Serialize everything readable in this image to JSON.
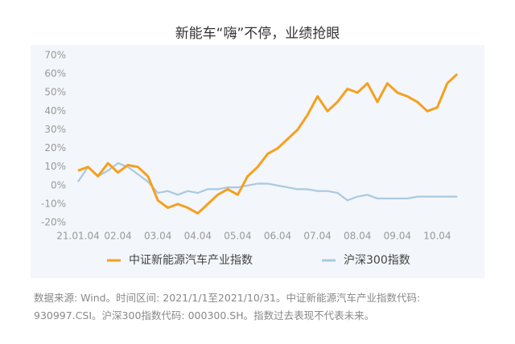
{
  "chart_data": {
    "type": "line",
    "title": "新能车“嗨”不停，业绩抢眼",
    "categories": [
      "21.01.04",
      null,
      null,
      null,
      "02.04",
      null,
      null,
      null,
      "03.04",
      null,
      null,
      null,
      "04.04",
      null,
      null,
      null,
      "05.04",
      null,
      null,
      null,
      "06.04",
      null,
      null,
      null,
      "07.04",
      null,
      null,
      null,
      "08.04",
      null,
      null,
      null,
      "09.04",
      null,
      null,
      null,
      "10.04",
      null,
      null
    ],
    "series": [
      {
        "name": "中证新能源汽车产业指数",
        "color": "#f5a01f",
        "values": [
          8,
          10,
          5,
          12,
          7,
          11,
          10,
          5,
          -8,
          -12,
          -10,
          -12,
          -15,
          -10,
          -5,
          -2,
          -5,
          5,
          10,
          17,
          20,
          25,
          30,
          38,
          48,
          40,
          45,
          52,
          50,
          55,
          45,
          55,
          50,
          48,
          45,
          40,
          42,
          55,
          60
        ]
      },
      {
        "name": "沪深300指数",
        "color": "#a9c9e2",
        "values": [
          2,
          10,
          5,
          8,
          12,
          10,
          6,
          2,
          -4,
          -3,
          -5,
          -3,
          -4,
          -2,
          -2,
          -1,
          -1,
          0,
          1,
          1,
          0,
          -1,
          -2,
          -2,
          -3,
          -3,
          -4,
          -8,
          -6,
          -5,
          -7,
          -7,
          -7,
          -7,
          -6,
          -6,
          -6,
          -6,
          -6
        ]
      }
    ],
    "ylim": [
      -20,
      70
    ],
    "yticks": [
      {
        "value": 70,
        "label": "70%"
      },
      {
        "value": 60,
        "label": "60%"
      },
      {
        "value": 50,
        "label": "50%"
      },
      {
        "value": 40,
        "label": "40%"
      },
      {
        "value": 30,
        "label": "30%"
      },
      {
        "value": 20,
        "label": "20%"
      },
      {
        "value": 10,
        "label": "10%"
      },
      {
        "value": 0,
        "label": "0%"
      },
      {
        "value": -10,
        "label": "-10%"
      },
      {
        "value": -20,
        "label": "-20%"
      }
    ],
    "grid": false
  },
  "footnote": [
    "数据来源: Wind。时间区间: 2021/1/1至2021/10/31。中证新能源汽车产业指数代码:",
    "930997.CSI。沪深300指数代码: 000300.SH。指数过去表现不代表未来。"
  ]
}
